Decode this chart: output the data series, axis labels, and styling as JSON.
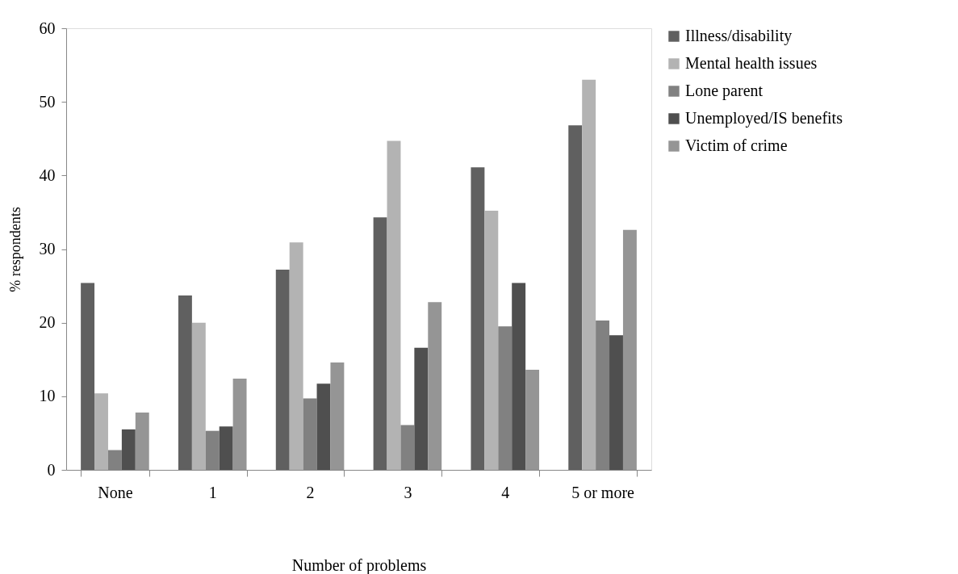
{
  "chart_data": {
    "type": "bar",
    "xlabel": "Number of problems",
    "ylabel": "% respondents",
    "categories": [
      "None",
      "1",
      "2",
      "3",
      "4",
      "5 or more"
    ],
    "series": [
      {
        "name": "Illness/disability",
        "color": "#606060",
        "values": [
          25.4,
          23.7,
          27.2,
          34.3,
          41.1,
          46.8
        ]
      },
      {
        "name": "Mental health issues",
        "color": "#b3b3b3",
        "values": [
          10.4,
          20.0,
          30.9,
          44.7,
          35.2,
          53.0
        ]
      },
      {
        "name": "Lone parent",
        "color": "#818181",
        "values": [
          2.7,
          5.3,
          9.7,
          6.1,
          19.5,
          20.3
        ]
      },
      {
        "name": "Unemployed/IS benefits",
        "color": "#4f4f4f",
        "values": [
          5.5,
          5.9,
          11.7,
          16.6,
          25.4,
          18.3
        ]
      },
      {
        "name": "Victim of crime",
        "color": "#959595",
        "values": [
          7.8,
          12.4,
          14.6,
          22.8,
          13.6,
          32.6
        ]
      }
    ],
    "ylim": [
      0,
      60
    ],
    "yticks": [
      0,
      10,
      20,
      30,
      40,
      50,
      60
    ],
    "grid": false,
    "legend": "top right"
  }
}
